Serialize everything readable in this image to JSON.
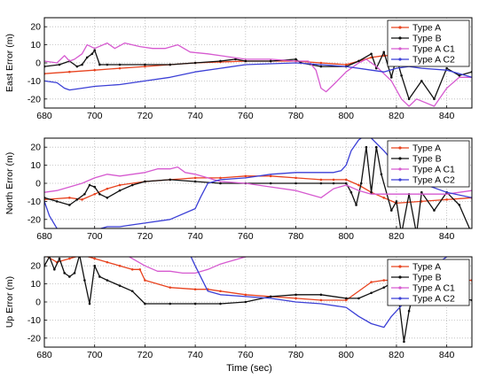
{
  "xlabel": "Time (sec)",
  "colors": {
    "typeA": "#e8431f",
    "typeB": "#111111",
    "typeAC1": "#d65ad0",
    "typeAC2": "#3b3fd6"
  },
  "chart_data": [
    {
      "type": "line",
      "ylabel": "East Error (m)",
      "xlim": [
        680,
        850
      ],
      "ylim": [
        -25,
        25
      ],
      "xticks": [
        "680",
        "700",
        "720",
        "740",
        "760",
        "780",
        "800",
        "820",
        "840"
      ],
      "yticks": [
        "20",
        "10",
        "0",
        "-10",
        "-20"
      ],
      "grid": true,
      "legend_position": "top-right",
      "series": [
        {
          "name": "Type A",
          "color": "#e8431f",
          "marker": "dot",
          "x": [
            680,
            690,
            700,
            710,
            720,
            730,
            740,
            750,
            760,
            770,
            780,
            790,
            800,
            805,
            810,
            815,
            820
          ],
          "y": [
            -6,
            -5,
            -4,
            -3,
            -2,
            -1,
            0,
            0.5,
            1,
            1,
            1,
            0,
            -1,
            1,
            3,
            4,
            4
          ]
        },
        {
          "name": "Type B",
          "color": "#111111",
          "marker": "dot",
          "x": [
            680,
            686,
            690,
            693,
            695,
            697,
            699,
            700,
            702,
            705,
            710,
            720,
            730,
            740,
            750,
            756,
            760,
            770,
            780,
            782,
            790,
            800,
            805,
            810,
            812,
            815,
            818,
            820,
            822,
            825,
            830,
            835,
            840,
            845,
            850
          ],
          "y": [
            -2,
            -1,
            1,
            -2,
            -1,
            3,
            5,
            7,
            -1,
            -1,
            -1,
            -1,
            -1,
            0,
            1,
            2,
            1,
            1,
            2,
            0,
            -2,
            -2,
            1,
            5,
            -3,
            6,
            -8,
            3,
            -7,
            -20,
            -10,
            -20,
            -3,
            -7,
            -5
          ]
        },
        {
          "name": "Type A C1",
          "color": "#d65ad0",
          "marker": "none",
          "x": [
            680,
            685,
            688,
            690,
            692,
            695,
            697,
            700,
            705,
            708,
            712,
            718,
            723,
            728,
            733,
            738,
            745,
            760,
            770,
            780,
            785,
            788,
            790,
            792,
            795,
            800,
            805,
            808,
            812,
            815,
            818,
            820,
            822,
            825,
            828,
            835,
            840,
            845,
            850
          ],
          "y": [
            1,
            0,
            4,
            1,
            2,
            5,
            10,
            8,
            11,
            8,
            11,
            9,
            8,
            8,
            10,
            6,
            5,
            2,
            2,
            1,
            1,
            -4,
            -14,
            -16,
            -12,
            -5,
            0,
            2,
            -2,
            -6,
            -10,
            -15,
            -20,
            -24,
            -20,
            -24,
            -14,
            -8,
            -8
          ]
        },
        {
          "name": "Type A C2",
          "color": "#3b3fd6",
          "marker": "none",
          "x": [
            680,
            685,
            688,
            690,
            695,
            700,
            710,
            720,
            730,
            740,
            750,
            760,
            780,
            790,
            800,
            810,
            815,
            820,
            825,
            830,
            840,
            850
          ],
          "y": [
            -10,
            -11,
            -14,
            -15,
            -14,
            -13,
            -12,
            -10,
            -8,
            -5,
            -3,
            -1,
            0,
            -1,
            -2,
            -4,
            -5,
            -3,
            -2,
            -3,
            -4,
            -8
          ]
        }
      ]
    },
    {
      "type": "line",
      "ylabel": "North Error (m)",
      "xlim": [
        680,
        850
      ],
      "ylim": [
        -25,
        25
      ],
      "xticks": [
        "680",
        "700",
        "720",
        "740",
        "760",
        "780",
        "800",
        "820",
        "840"
      ],
      "yticks": [
        "20",
        "10",
        "0",
        "-10",
        "-20"
      ],
      "grid": true,
      "legend_position": "top-right",
      "series": [
        {
          "name": "Type A",
          "color": "#e8431f",
          "marker": "dot",
          "x": [
            680,
            690,
            695,
            700,
            705,
            710,
            720,
            730,
            740,
            750,
            760,
            770,
            780,
            790,
            795,
            800,
            805,
            810,
            815,
            820,
            830,
            840,
            850
          ],
          "y": [
            -9,
            -8,
            -9,
            -6,
            -3,
            -1,
            1,
            2,
            3,
            3,
            4,
            4,
            3,
            2,
            2,
            2,
            -1,
            -5,
            -8,
            -11,
            -10,
            -9,
            -8
          ]
        },
        {
          "name": "Type B",
          "color": "#111111",
          "marker": "dot",
          "x": [
            680,
            685,
            690,
            693,
            696,
            698,
            700,
            702,
            705,
            710,
            715,
            720,
            730,
            740,
            750,
            760,
            770,
            780,
            790,
            795,
            800,
            802,
            804,
            806,
            808,
            810,
            812,
            814,
            818,
            820,
            822,
            825,
            828,
            830,
            835,
            840,
            845,
            850
          ],
          "y": [
            -8,
            -10,
            -12,
            -9,
            -6,
            -1,
            -2,
            -6,
            -8,
            -4,
            -1,
            1,
            2,
            1,
            0,
            0,
            0,
            0,
            0,
            0,
            0,
            -5,
            -12,
            0,
            20,
            -5,
            20,
            5,
            -15,
            -10,
            -28,
            -6,
            -28,
            -5,
            -15,
            -5,
            -12,
            -28
          ]
        },
        {
          "name": "Type A C1",
          "color": "#d65ad0",
          "marker": "none",
          "x": [
            680,
            685,
            690,
            695,
            700,
            705,
            710,
            715,
            720,
            725,
            730,
            733,
            736,
            740,
            745,
            750,
            760,
            770,
            780,
            785,
            790,
            795,
            800,
            805,
            810,
            815,
            820,
            830,
            840,
            850
          ],
          "y": [
            -5,
            -4,
            -2,
            0,
            3,
            5,
            4,
            5,
            6,
            8,
            8,
            9,
            6,
            5,
            3,
            1,
            0,
            -2,
            -4,
            -6,
            -8,
            -3,
            -1,
            -4,
            -6,
            -6,
            -6,
            -6,
            -6,
            -4
          ]
        },
        {
          "name": "Type A C2",
          "color": "#3b3fd6",
          "marker": "none",
          "x": [
            680,
            682,
            685,
            688,
            690,
            695,
            700,
            705,
            710,
            715,
            720,
            730,
            740,
            742,
            745,
            750,
            760,
            770,
            780,
            790,
            795,
            798,
            800,
            802,
            805,
            807,
            810,
            815,
            820,
            830,
            840,
            850
          ],
          "y": [
            -10,
            -18,
            -25,
            -28,
            -28,
            -28,
            -26,
            -24,
            -24,
            -23,
            -22,
            -20,
            -14,
            -8,
            0,
            2,
            3,
            5,
            6,
            6,
            6,
            7,
            10,
            18,
            24,
            26,
            25,
            18,
            10,
            0,
            -5,
            -8
          ]
        }
      ]
    },
    {
      "type": "line",
      "ylabel": "Up Error (m)",
      "xlim": [
        680,
        850
      ],
      "ylim": [
        -25,
        25
      ],
      "xticks": [
        "680",
        "700",
        "720",
        "740",
        "760",
        "780",
        "800",
        "820",
        "840"
      ],
      "yticks": [
        "20",
        "10",
        "0",
        "-10",
        "-20"
      ],
      "grid": true,
      "legend_position": "top-right",
      "series": [
        {
          "name": "Type A",
          "color": "#e8431f",
          "marker": "dot",
          "x": [
            680,
            685,
            690,
            695,
            700,
            705,
            710,
            715,
            718,
            720,
            730,
            740,
            745,
            750,
            760,
            770,
            780,
            790,
            800,
            810,
            815,
            820,
            830,
            840,
            850
          ],
          "y": [
            26,
            22,
            24,
            26,
            24,
            22,
            20,
            18,
            18,
            12,
            8,
            7,
            7,
            6,
            4,
            3,
            2,
            1,
            1,
            11,
            12,
            12,
            12,
            12,
            12
          ]
        },
        {
          "name": "Type B",
          "color": "#111111",
          "marker": "dot",
          "x": [
            680,
            682,
            684,
            686,
            688,
            690,
            692,
            694,
            696,
            698,
            700,
            702,
            705,
            710,
            715,
            720,
            730,
            740,
            750,
            760,
            770,
            780,
            790,
            800,
            805,
            810,
            815,
            820,
            823,
            825,
            828,
            830,
            835,
            840,
            845,
            850
          ],
          "y": [
            20,
            25,
            18,
            24,
            16,
            14,
            16,
            26,
            12,
            -1,
            20,
            14,
            12,
            9,
            6,
            -1,
            -1,
            -1,
            -1,
            0,
            3,
            4,
            4,
            2,
            2,
            5,
            8,
            12,
            -22,
            -5,
            12,
            2,
            8,
            14,
            2,
            1
          ]
        },
        {
          "name": "Type A C1",
          "color": "#d65ad0",
          "marker": "none",
          "x": [
            680,
            690,
            700,
            710,
            720,
            725,
            730,
            735,
            740,
            745,
            750,
            755,
            760
          ],
          "y": [
            28,
            28,
            28,
            28,
            20,
            17,
            17,
            16,
            16,
            18,
            21,
            23,
            25
          ]
        },
        {
          "name": "Type A C2",
          "color": "#3b3fd6",
          "marker": "none",
          "x": [
            680,
            700,
            720,
            730,
            735,
            738,
            740,
            745,
            750,
            760,
            770,
            780,
            790,
            800,
            805,
            810,
            815,
            818,
            822,
            825,
            830,
            835,
            840,
            845,
            850
          ],
          "y": [
            28,
            28,
            28,
            27,
            26,
            26,
            20,
            6,
            4,
            3,
            2,
            0,
            -1,
            -3,
            -8,
            -12,
            -14,
            -8,
            -2,
            5,
            15,
            20,
            25,
            28,
            28
          ]
        }
      ]
    }
  ]
}
